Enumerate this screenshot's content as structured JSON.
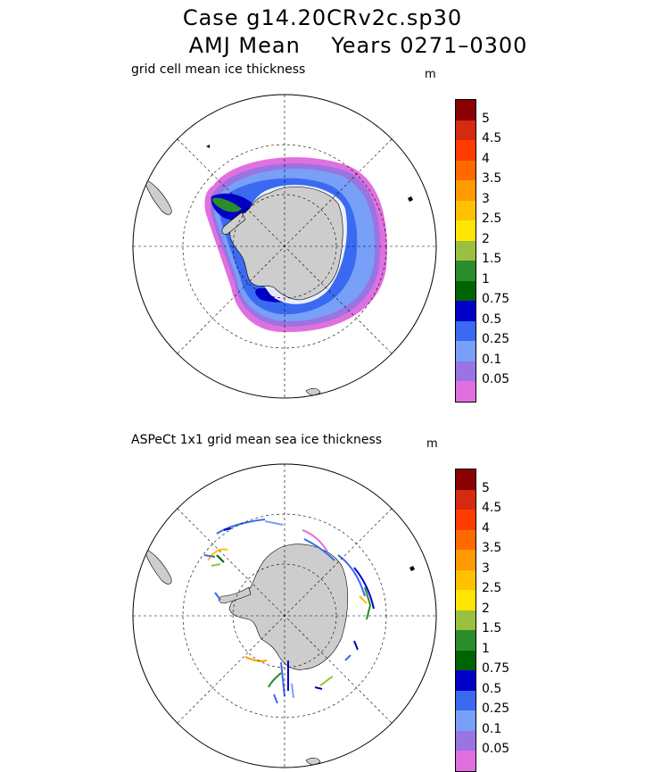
{
  "title": {
    "line1": "Case g14.20CRv2c.sp30",
    "line2": "AMJ Mean    Years 0271–0300"
  },
  "legend": {
    "unit": "m",
    "levels": [
      "5",
      "4.5",
      "4",
      "3.5",
      "3",
      "2.5",
      "2",
      "1.5",
      "1",
      "0.75",
      "0.5",
      "0.25",
      "0.1",
      "0.05"
    ],
    "colors": [
      "#8b0000",
      "#d42a10",
      "#ff3c00",
      "#ff6a00",
      "#ff9a00",
      "#ffc000",
      "#ffe600",
      "#99c040",
      "#2a8c2a",
      "#006400",
      "#0000c8",
      "#3a6af0",
      "#78a0f8",
      "#9a74e0",
      "#e070e0"
    ]
  },
  "panels": [
    {
      "label": "grid cell mean ice thickness"
    },
    {
      "label": "ASPeCt 1x1 grid mean sea ice thickness"
    }
  ],
  "map_style": {
    "land_color": "#cdcdcd",
    "projection": "south polar stereographic"
  }
}
